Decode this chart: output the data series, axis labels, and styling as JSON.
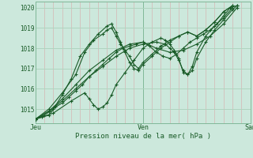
{
  "xlabel": "Pression niveau de la mer( hPa )",
  "background_color": "#cce8dc",
  "plot_bg_color": "#cce8dc",
  "line_color": "#1a5c28",
  "ylim": [
    1014.3,
    1020.3
  ],
  "xlim": [
    0,
    96
  ],
  "yticks": [
    1015,
    1016,
    1017,
    1018,
    1019,
    1020
  ],
  "day_labels": [
    "Jeu",
    "Ven",
    "Sam"
  ],
  "day_positions": [
    0,
    48,
    96
  ],
  "series": [
    [
      0,
      1014.5,
      3,
      1014.6,
      6,
      1014.7,
      9,
      1015.1,
      12,
      1015.3,
      15,
      1015.6,
      18,
      1015.9,
      21,
      1016.2,
      24,
      1016.6,
      27,
      1016.9,
      30,
      1017.2,
      33,
      1017.5,
      36,
      1017.8,
      39,
      1018.0,
      42,
      1018.1,
      45,
      1018.2,
      48,
      1018.3,
      51,
      1018.1,
      54,
      1017.8,
      57,
      1017.6,
      60,
      1017.5,
      63,
      1017.7,
      66,
      1018.0,
      69,
      1018.3,
      72,
      1018.5,
      75,
      1018.7,
      78,
      1018.9,
      81,
      1019.2,
      84,
      1019.6,
      87,
      1020.0,
      90,
      1020.1
    ],
    [
      0,
      1014.5,
      6,
      1014.9,
      12,
      1015.5,
      18,
      1016.2,
      24,
      1016.9,
      30,
      1017.4,
      36,
      1017.9,
      42,
      1018.2,
      48,
      1018.3,
      54,
      1018.0,
      60,
      1017.8,
      66,
      1017.9,
      72,
      1018.2,
      78,
      1018.6,
      84,
      1019.2,
      90,
      1020.0
    ],
    [
      0,
      1014.5,
      4,
      1014.7,
      8,
      1015.0,
      12,
      1015.7,
      16,
      1016.5,
      20,
      1017.6,
      24,
      1018.2,
      28,
      1018.7,
      32,
      1019.1,
      34,
      1019.2,
      36,
      1018.8,
      38,
      1018.3,
      40,
      1017.8,
      42,
      1017.3,
      44,
      1017.0,
      46,
      1016.9,
      48,
      1017.2,
      52,
      1017.6,
      56,
      1018.0,
      60,
      1018.3,
      64,
      1018.6,
      68,
      1018.8,
      72,
      1018.6,
      76,
      1018.9,
      80,
      1019.3,
      84,
      1019.8,
      88,
      1020.1
    ],
    [
      0,
      1014.5,
      6,
      1015.0,
      12,
      1015.8,
      18,
      1016.7,
      22,
      1017.8,
      26,
      1018.4,
      30,
      1018.7,
      32,
      1018.9,
      34,
      1019.0,
      36,
      1018.6,
      38,
      1018.2,
      40,
      1017.9,
      42,
      1017.6,
      44,
      1017.2,
      46,
      1017.0,
      48,
      1017.3,
      52,
      1017.7,
      56,
      1018.1,
      60,
      1018.4,
      64,
      1018.6,
      68,
      1018.8,
      72,
      1018.6,
      76,
      1018.9,
      80,
      1019.3,
      84,
      1019.8,
      88,
      1020.1
    ],
    [
      0,
      1014.5,
      8,
      1014.8,
      16,
      1015.4,
      22,
      1015.8,
      24,
      1015.5,
      26,
      1015.2,
      28,
      1015.0,
      30,
      1015.1,
      32,
      1015.3,
      34,
      1015.7,
      36,
      1016.2,
      40,
      1016.8,
      44,
      1017.4,
      48,
      1018.0,
      52,
      1018.3,
      56,
      1018.5,
      58,
      1018.4,
      60,
      1018.2,
      62,
      1017.9,
      64,
      1017.5,
      66,
      1016.8,
      68,
      1016.7,
      70,
      1017.1,
      72,
      1017.8,
      76,
      1018.6,
      80,
      1019.1,
      84,
      1019.5,
      88,
      1020.0
    ],
    [
      0,
      1014.5,
      6,
      1014.9,
      12,
      1015.4,
      18,
      1016.0,
      24,
      1016.6,
      30,
      1017.1,
      36,
      1017.6,
      42,
      1018.0,
      48,
      1018.2,
      54,
      1018.3,
      58,
      1018.2,
      60,
      1018.0,
      62,
      1017.8,
      64,
      1017.4,
      66,
      1016.9,
      68,
      1016.7,
      70,
      1016.9,
      72,
      1017.5,
      76,
      1018.3,
      80,
      1018.9,
      84,
      1019.4,
      88,
      1019.9,
      90,
      1020.1
    ]
  ]
}
